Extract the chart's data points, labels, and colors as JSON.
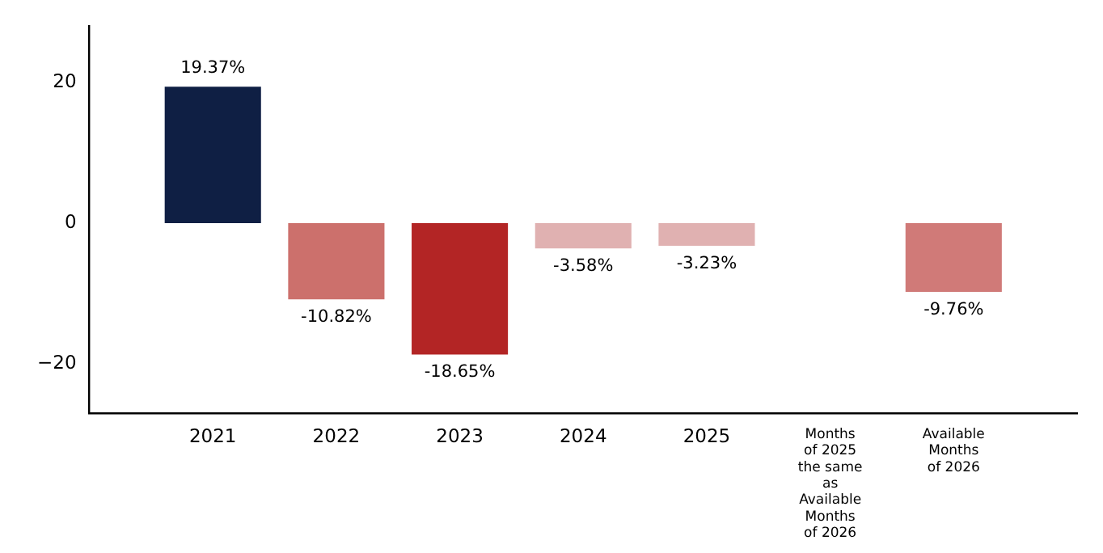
{
  "chart_data": {
    "type": "bar",
    "categories": [
      "2021",
      "2022",
      "2023",
      "2024",
      "2025",
      "Months of 2025 the same as Available Months of 2026",
      "Available Months of 2026"
    ],
    "values": [
      19.37,
      -10.82,
      -18.65,
      -3.58,
      -3.23,
      null,
      -9.76
    ],
    "colors": [
      "#0f1f44",
      "#cc706c",
      "#b32525",
      "#e0b1b1",
      "#e0b1b1",
      "#e0b1b1",
      "#d07a78"
    ],
    "value_labels": [
      "19.37%",
      "-10.82%",
      "-18.65%",
      "-3.58%",
      "-3.23%",
      null,
      "-9.76%"
    ],
    "ylim": [
      -27,
      28
    ],
    "yticks": [
      {
        "value": -20,
        "label": "−20"
      },
      {
        "value": 0,
        "label": "0"
      },
      {
        "value": 20,
        "label": "20"
      }
    ],
    "grid": false,
    "legend": false
  }
}
